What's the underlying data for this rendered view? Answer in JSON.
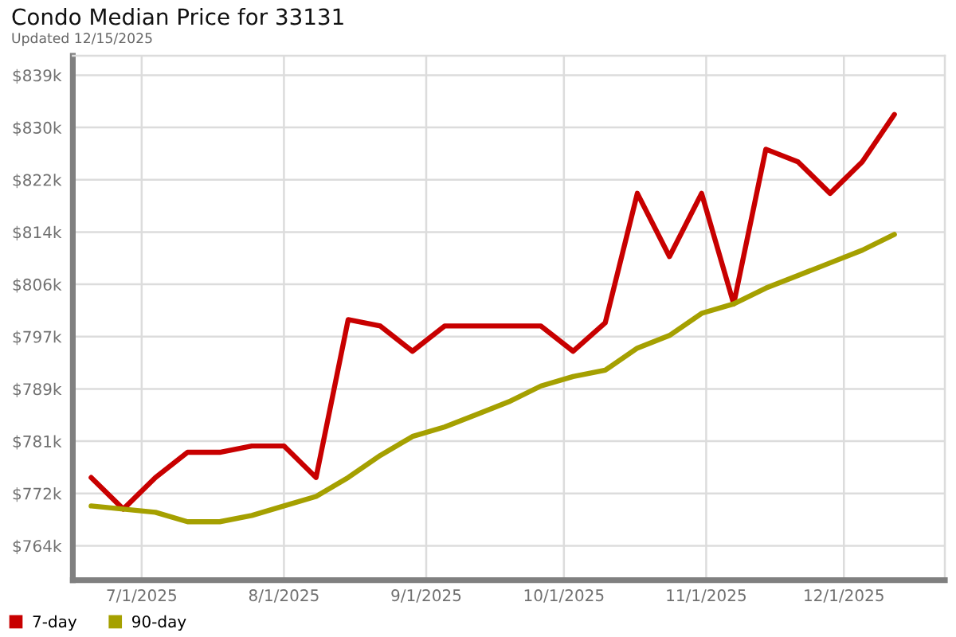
{
  "chart_data": {
    "type": "line",
    "title": "Condo Median Price for 33131",
    "subtitle": "Updated 12/15/2025",
    "x": [
      "2025-06-20",
      "2025-06-27",
      "2025-07-04",
      "2025-07-11",
      "2025-07-18",
      "2025-07-25",
      "2025-08-01",
      "2025-08-08",
      "2025-08-15",
      "2025-08-22",
      "2025-08-29",
      "2025-09-05",
      "2025-09-12",
      "2025-09-19",
      "2025-09-26",
      "2025-10-03",
      "2025-10-10",
      "2025-10-17",
      "2025-10-24",
      "2025-10-31",
      "2025-11-07",
      "2025-11-14",
      "2025-11-21",
      "2025-11-28",
      "2025-12-05",
      "2025-12-12"
    ],
    "series": [
      {
        "name": "7-day",
        "color": "#c80000",
        "values": [
          775,
          770,
          775,
          779,
          779,
          780,
          780,
          775,
          800,
          799,
          795,
          799,
          799,
          799,
          799,
          795,
          799.5,
          820,
          810,
          820,
          802.5,
          827,
          825,
          820,
          825,
          832.5
        ]
      },
      {
        "name": "90-day",
        "color": "#a5a000",
        "values": [
          770.5,
          770,
          769.5,
          768,
          768,
          769,
          770.5,
          772,
          775,
          778.5,
          781.5,
          783,
          785,
          787,
          789.5,
          791,
          792,
          795.5,
          797.5,
          801,
          802.5,
          805,
          807,
          809,
          811,
          813.5
        ]
      }
    ],
    "xlim": [
      "2025-06-16",
      "2025-12-23"
    ],
    "xticks": [
      {
        "value": "2025-07-01",
        "label": "7/1/2025"
      },
      {
        "value": "2025-08-01",
        "label": "8/1/2025"
      },
      {
        "value": "2025-09-01",
        "label": "9/1/2025"
      },
      {
        "value": "2025-10-01",
        "label": "10/1/2025"
      },
      {
        "value": "2025-11-01",
        "label": "11/1/2025"
      },
      {
        "value": "2025-12-01",
        "label": "12/1/2025"
      }
    ],
    "ylim": [
      758.75,
      841.8
    ],
    "yticks": [
      {
        "value": 764.2,
        "label": "$764k"
      },
      {
        "value": 772.48,
        "label": "$772k"
      },
      {
        "value": 780.76,
        "label": "$781k"
      },
      {
        "value": 789.04,
        "label": "$789k"
      },
      {
        "value": 797.32,
        "label": "$797k"
      },
      {
        "value": 805.6,
        "label": "$806k"
      },
      {
        "value": 813.88,
        "label": "$814k"
      },
      {
        "value": 822.16,
        "label": "$822k"
      },
      {
        "value": 830.44,
        "label": "$830k"
      },
      {
        "value": 838.72,
        "label": "$839k"
      }
    ],
    "grid": true,
    "legend": "bottom left",
    "line_style": "solid"
  }
}
